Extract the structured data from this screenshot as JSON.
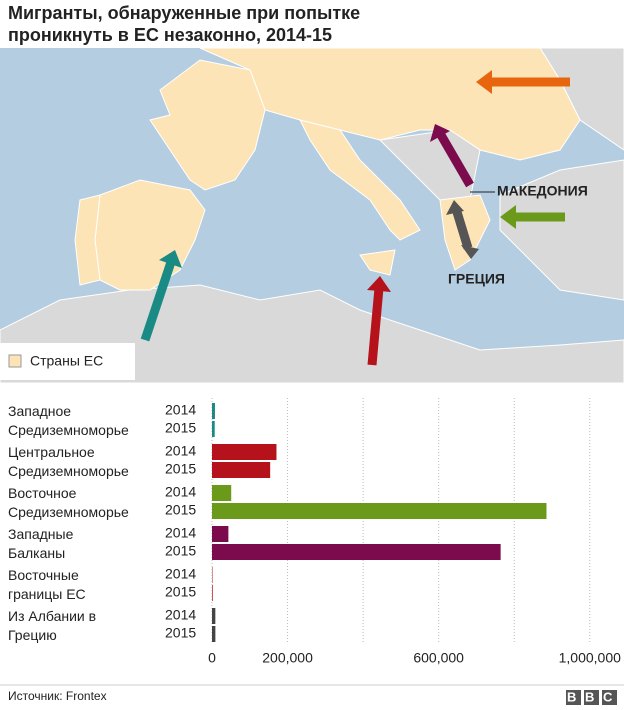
{
  "title": "Мигранты, обнаруженные при попытке проникнуть в ЕС незаконно, 2014-15",
  "map": {
    "labels": [
      "МАКЕДОНИЯ",
      "ГРЕЦИЯ"
    ],
    "legend": "Страны ЕС"
  },
  "chart_data": {
    "type": "bar",
    "orientation": "horizontal",
    "categories": [
      "Западное Средиземноморье",
      "Центральное Средиземноморье",
      "Восточное Средиземноморье",
      "Западные Балканы",
      "Восточные границы ЕС",
      "Из Албании в Грецию"
    ],
    "colors": [
      "#1a8a84",
      "#b5121b",
      "#6b9a1a",
      "#7b0b4c",
      "#b5121b",
      "#444444"
    ],
    "series": [
      {
        "name": "2014",
        "values": [
          7842,
          170664,
          50834,
          43357,
          1275,
          8841
        ]
      },
      {
        "name": "2015",
        "values": [
          7164,
          153946,
          885386,
          764038,
          1920,
          8932
        ]
      }
    ],
    "xlim": [
      0,
      1080000
    ],
    "xticks": [
      {
        "value": 0,
        "label": "0"
      },
      {
        "value": 200000,
        "label": "200,000"
      },
      {
        "value": 600000,
        "label": "600,000"
      },
      {
        "value": 1000000,
        "label": "1,000,000"
      }
    ],
    "xgrid": [
      0,
      200000,
      400000,
      600000,
      800000,
      1000000
    ],
    "grid": true
  },
  "source": "Источник: Frontex",
  "logo": "BBC"
}
